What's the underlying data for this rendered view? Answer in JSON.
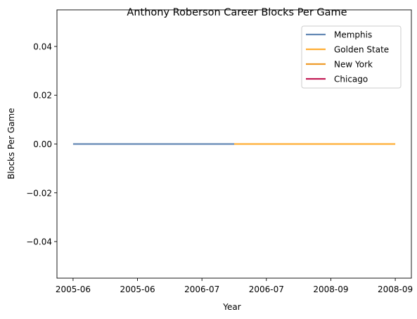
{
  "chart_data": {
    "type": "line",
    "title": "Anthony Roberson Career Blocks Per Game",
    "xlabel": "Year",
    "ylabel": "Blocks Per Game",
    "x_tick_labels": [
      "2005-06",
      "2005-06",
      "2006-07",
      "2006-07",
      "2008-09",
      "2008-09"
    ],
    "y_ticks": [
      -0.04,
      -0.02,
      0.0,
      0.02,
      0.04
    ],
    "y_tick_labels": [
      "−0.04",
      "−0.02",
      "0.00",
      "0.02",
      "0.04"
    ],
    "ylim": [
      -0.055,
      0.055
    ],
    "xlim": [
      -0.1,
      2.1
    ],
    "grid": false,
    "legend_position": "top-right",
    "series": [
      {
        "name": "Memphis",
        "color": "#6388b4",
        "x": [
          0,
          1
        ],
        "y": [
          0.0,
          0.0
        ]
      },
      {
        "name": "Golden State",
        "color": "#ffae34",
        "x": [
          1,
          2
        ],
        "y": [
          0.0,
          0.0
        ]
      },
      {
        "name": "New York",
        "color": "#ef9b2a",
        "x": [],
        "y": []
      },
      {
        "name": "Chicago",
        "color": "#c21d56",
        "x": [],
        "y": []
      }
    ]
  }
}
